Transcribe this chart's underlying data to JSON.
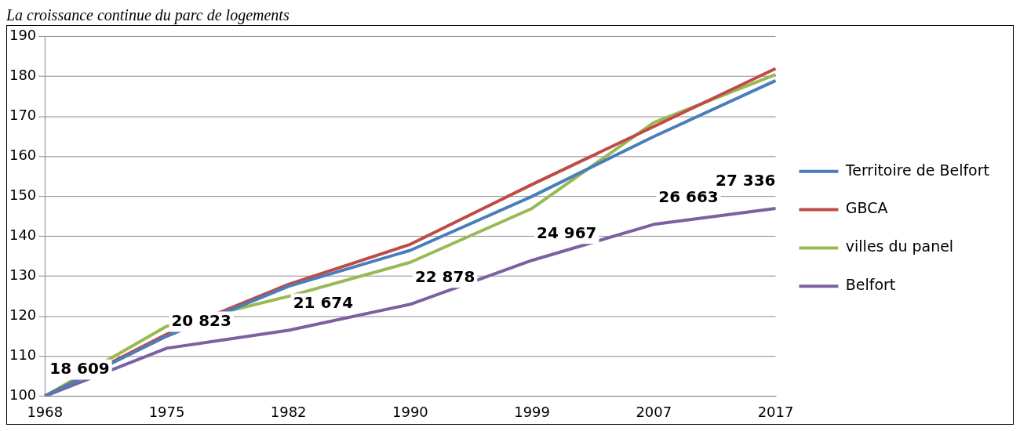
{
  "chart_data": {
    "type": "line",
    "title": "La croissance continue du parc de logements",
    "categories": [
      "1968",
      "1975",
      "1982",
      "1990",
      "1999",
      "2007",
      "2017"
    ],
    "series": [
      {
        "name": "Territoire de Belfort",
        "color": "#4a7ebb",
        "values": [
          100,
          115,
          127.5,
          136.5,
          150,
          165,
          179
        ]
      },
      {
        "name": "GBCA",
        "color": "#be4b48",
        "values": [
          100,
          115.5,
          128,
          138,
          153,
          167.5,
          182
        ]
      },
      {
        "name": "villes du panel",
        "color": "#98b954",
        "values": [
          100,
          117.5,
          125,
          133.5,
          147,
          168.5,
          180.5
        ]
      },
      {
        "name": "Belfort",
        "color": "#7d60a0",
        "values": [
          100,
          112,
          116.5,
          123,
          134,
          143,
          147
        ]
      }
    ],
    "annotations": [
      {
        "text": "18 609",
        "x": "1968",
        "y": 100
      },
      {
        "text": "20 823",
        "x": "1975",
        "y": 112
      },
      {
        "text": "21 674",
        "x": "1982",
        "y": 116.5
      },
      {
        "text": "22 878",
        "x": "1990",
        "y": 123
      },
      {
        "text": "24 967",
        "x": "1999",
        "y": 134
      },
      {
        "text": "26 663",
        "x": "2007",
        "y": 143
      },
      {
        "text": "27 336",
        "x": "2017",
        "y": 147
      }
    ],
    "ylim": [
      100,
      190
    ],
    "yticks": [
      100,
      110,
      120,
      130,
      140,
      150,
      160,
      170,
      180,
      190
    ],
    "grid": "y",
    "legend": "right",
    "marker": "none",
    "line_style": "solid"
  }
}
